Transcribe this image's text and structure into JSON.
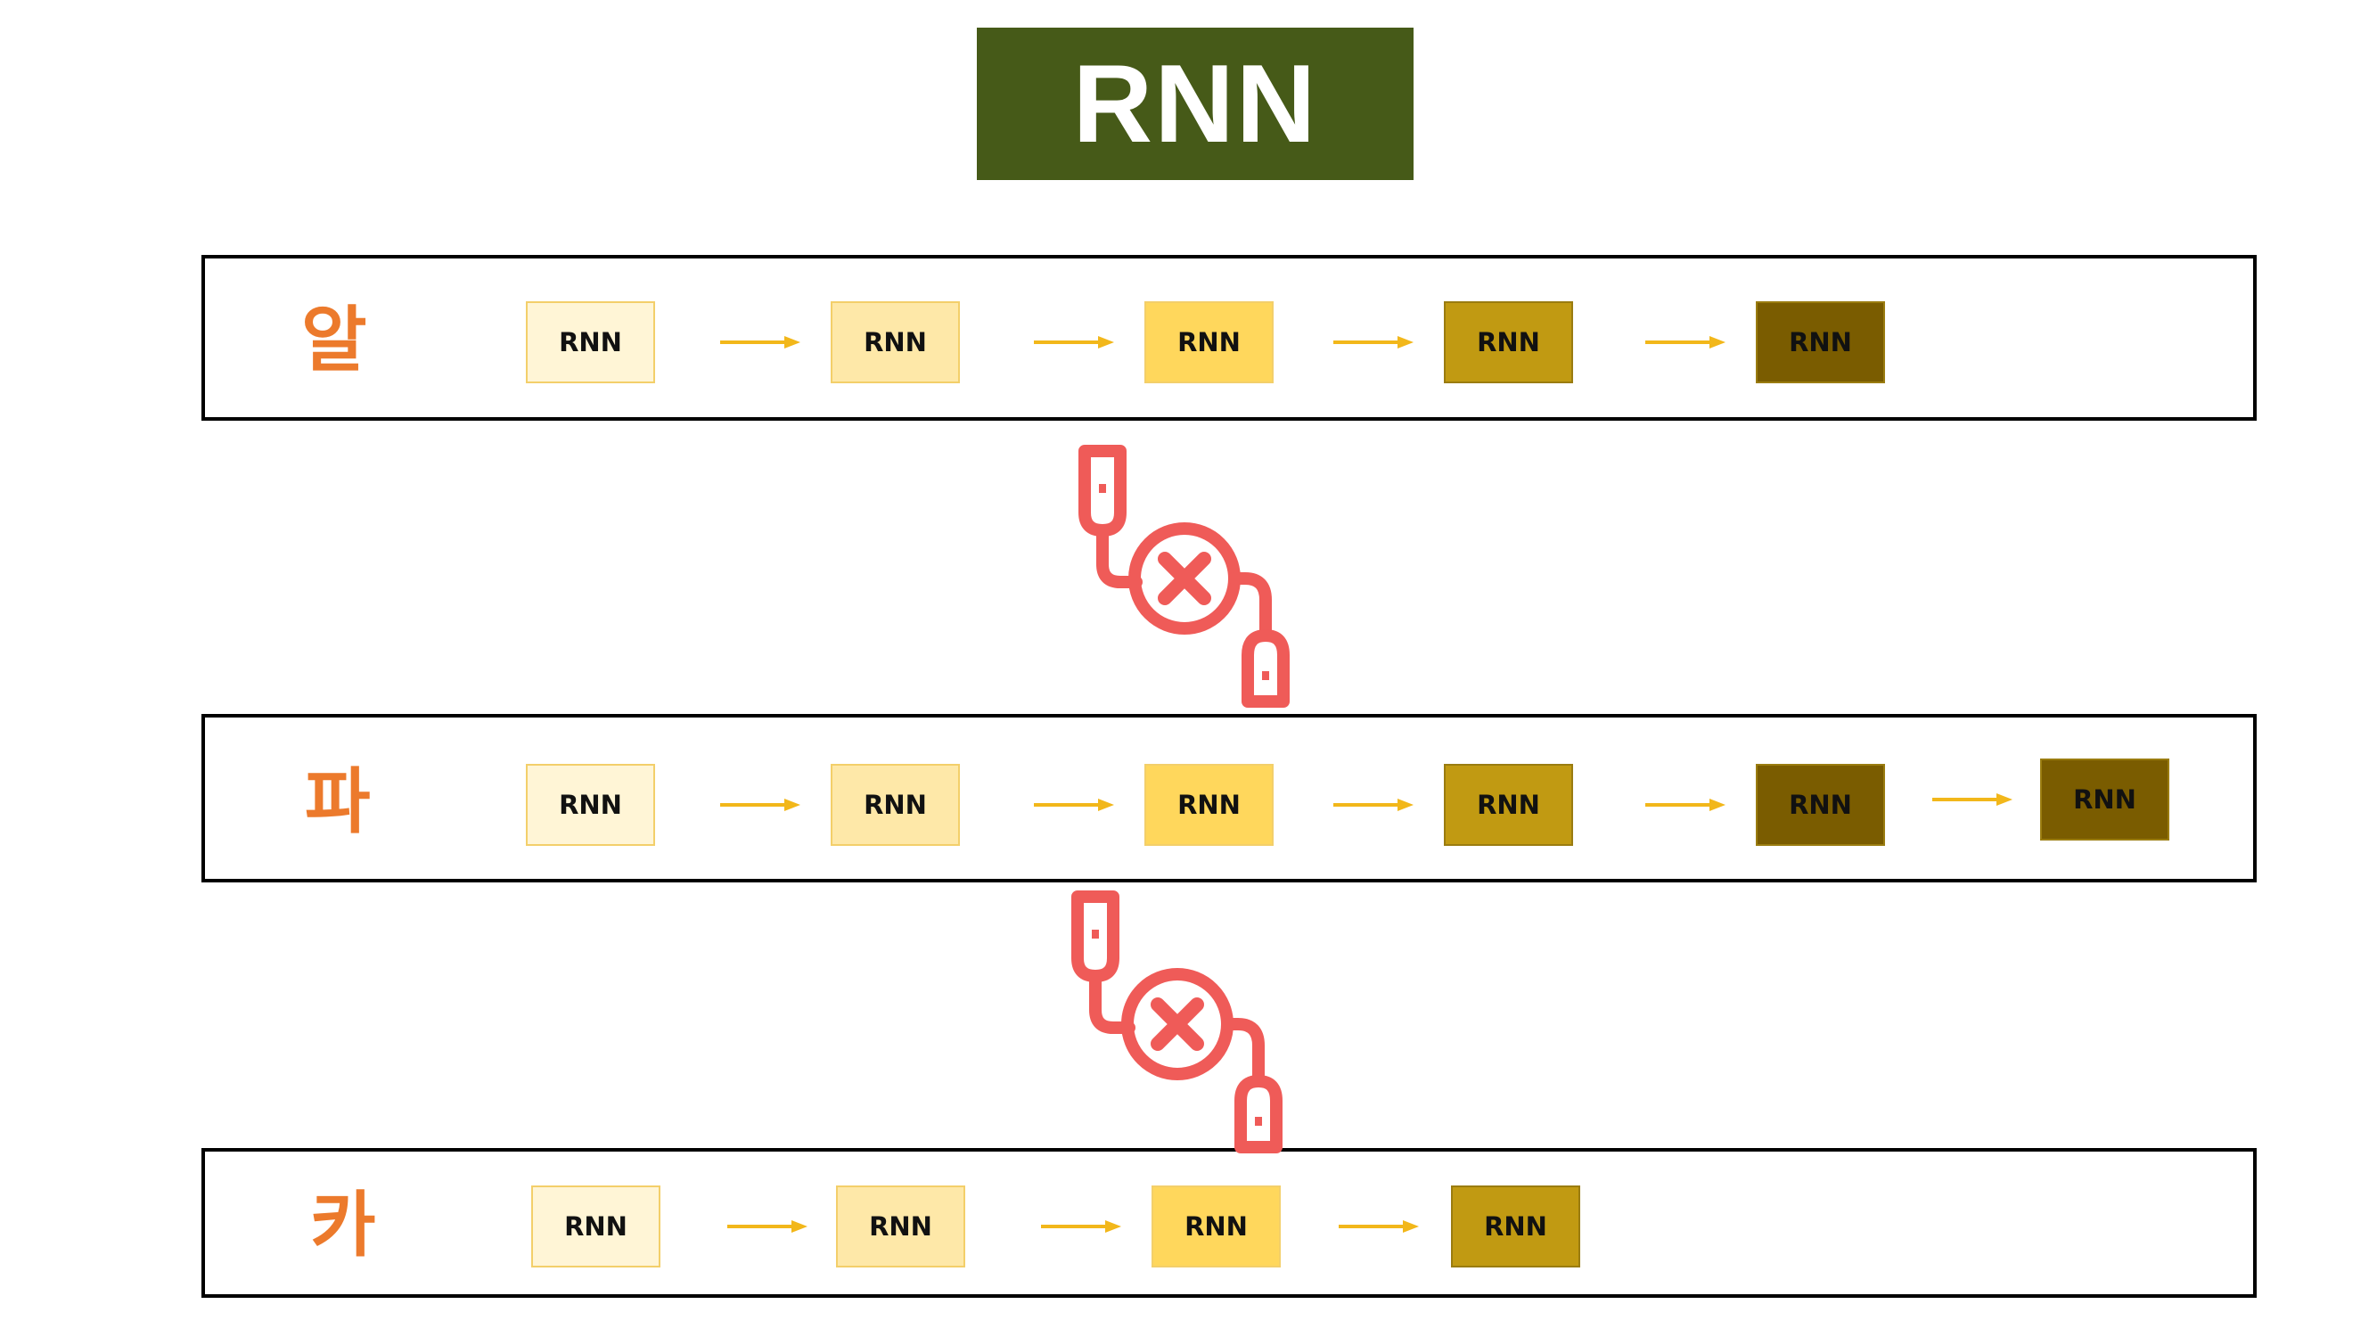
{
  "title": "RNN",
  "colors": {
    "title_bg": "#465a18",
    "label": "#ec7a2c",
    "arrow": "#f2b71a",
    "icon": "#ef5b58",
    "cell_shades": [
      "#fff5d6",
      "#fee8a8",
      "#ffd75c",
      "#c19a12",
      "#7a5c00"
    ]
  },
  "rows": [
    {
      "label": "알",
      "cells": [
        "RNN",
        "RNN",
        "RNN",
        "RNN",
        "RNN"
      ]
    },
    {
      "label": "파",
      "cells": [
        "RNN",
        "RNN",
        "RNN",
        "RNN",
        "RNN",
        "RNN"
      ]
    },
    {
      "label": "카",
      "cells": [
        "RNN",
        "RNN",
        "RNN",
        "RNN"
      ]
    }
  ],
  "connectors": [
    {
      "icon": "disconnected-cable-icon"
    },
    {
      "icon": "disconnected-cable-icon"
    }
  ]
}
